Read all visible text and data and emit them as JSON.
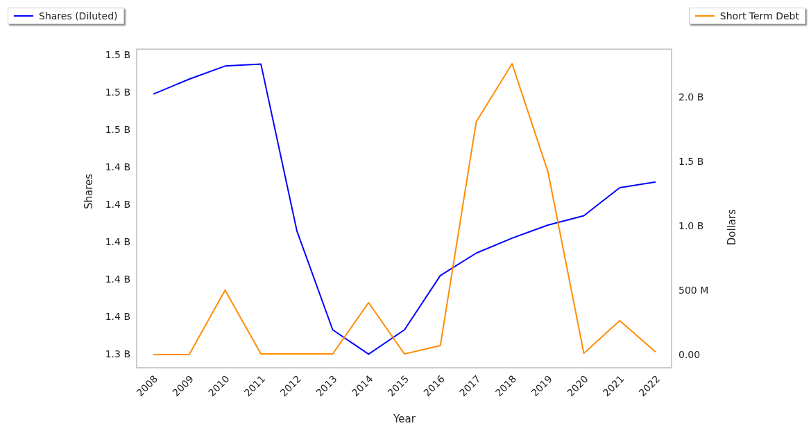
{
  "chart_data": {
    "type": "line",
    "xlabel": "Year",
    "ylabel": "Shares",
    "y2label": "Dollars",
    "categories": [
      "2008",
      "2009",
      "2010",
      "2011",
      "2012",
      "2013",
      "2014",
      "2015",
      "2016",
      "2017",
      "2018",
      "2019",
      "2020",
      "2021",
      "2022"
    ],
    "series": [
      {
        "name": "Shares (Diluted)",
        "color": "#0000ff",
        "values": [
          1479000000,
          1487000000,
          1494000000,
          1495000000,
          1406000000,
          1353000000,
          1340000000,
          1353000000,
          1382000000,
          1394000000,
          1402000000,
          1409000000,
          1414000000,
          1429000000,
          1432000000
        ]
      },
      {
        "name": "Short Term Debt",
        "color": "#ff8c00",
        "axis": "y2",
        "values": [
          0,
          0,
          500000000,
          5000000,
          5000000,
          5000000,
          403000000,
          5000000,
          70000000,
          1806000000,
          2258000000,
          1419000000,
          10000000,
          263000000,
          20000000
        ]
      }
    ],
    "ylim": [
      1332000000,
      1503000000
    ],
    "yticks": [
      {
        "value": 1340000000,
        "label": "1.3 B"
      },
      {
        "value": 1360000000,
        "label": "1.4 B"
      },
      {
        "value": 1380000000,
        "label": "1.4 B"
      },
      {
        "value": 1400000000,
        "label": "1.4 B"
      },
      {
        "value": 1420000000,
        "label": "1.4 B"
      },
      {
        "value": 1440000000,
        "label": "1.4 B"
      },
      {
        "value": 1460000000,
        "label": "1.5 B"
      },
      {
        "value": 1480000000,
        "label": "1.5 B"
      },
      {
        "value": 1500000000,
        "label": "1.5 B"
      }
    ],
    "y2lim": [
      -113000000,
      2371000000
    ],
    "y2ticks": [
      {
        "value": 0,
        "label": "0.00"
      },
      {
        "value": 500000000,
        "label": "500 M"
      },
      {
        "value": 1000000000,
        "label": "1.0 B"
      },
      {
        "value": 1500000000,
        "label": "1.5 B"
      },
      {
        "value": 2000000000,
        "label": "2.0 B"
      }
    ],
    "legend": "top",
    "grid": false,
    "marker": "none",
    "line_style": "solid"
  }
}
